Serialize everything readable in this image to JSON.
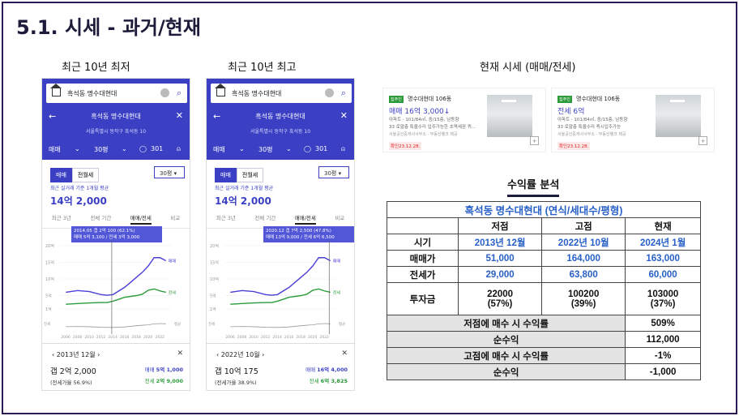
{
  "slide_title": "5.1. 시세 - 과거/현재",
  "captions": {
    "left": "최근 10년 최저",
    "mid": "최근 10년 최고",
    "right": "현재 시세 (매매/전세)"
  },
  "app": {
    "search_text": "흑석동 명수대현대",
    "complex_name": "흑석동 명수대현대",
    "address": "서울특별시 동작구 흑석동 10",
    "filter_trade": "매매",
    "filter_size": "30평",
    "comment_count": "301",
    "toggle_trade": "매매",
    "toggle_rent": "전월세",
    "size_select": "30평",
    "recent_label": "최근 실거래 기준 1개월 평균",
    "recent_price": "14억 2,000",
    "tabs": [
      "최근 3년",
      "전체 기간",
      "매매/전세",
      "비교"
    ],
    "legend_trade": "매매",
    "legend_rent": "전세",
    "legend_gap": "평균",
    "x_ticks": [
      "2006",
      "2008",
      "2010",
      "2012",
      "2014",
      "2016",
      "2018",
      "2020",
      "2022"
    ],
    "y_ticks": [
      "20억",
      "15억",
      "10억",
      "5억",
      "1억"
    ]
  },
  "phone_left": {
    "tooltip1": "2014.05  갭 2억 100 (62.1%)",
    "tooltip2": "매매 5억 3,100 / 전세 3억 3,000",
    "sel_date": "2013년 12월",
    "gap": "갭 2억 2,000",
    "jeonse_ratio": "(전세가율 56.9%)",
    "trade_value": "5억 1,000",
    "rent_value": "2억 9,000"
  },
  "phone_mid": {
    "tooltip1": "2020.12  갭 7억 2,500 (47.8%)",
    "tooltip2": "매매 13억 9,000 / 전세 6억 6,500",
    "sel_date": "2022년 10월",
    "gap": "갭 10억 175",
    "jeonse_ratio": "(전세가율 38.9%)",
    "trade_value": "16억 4,000",
    "rent_value": "6억 3,825"
  },
  "listings": [
    {
      "tag": "집주인",
      "name": "명수대현대 106동",
      "price": "매매 16억 3,000",
      "arrow": "↓",
      "d1": "아파트 · 101/84㎡, 중/15층, 남동향",
      "d2": "33 로얄층 특올수리 입주가능한 초역세권 퀴…",
      "d3": "서울공인중개사사무소 · 부동산뱅크 제공",
      "check": "확인23.12.28."
    },
    {
      "tag": "집주인",
      "name": "명수대현대 106동",
      "price": "전세 6억",
      "arrow": "",
      "d1": "아파트 · 101/84㎡, 중/15층, 남동향",
      "d2": "33 로얄층 특올수리 즉시입주가능",
      "d3": "서울공인중개사사무소 · 부동산뱅크 제공",
      "check": "확인23.12.28."
    }
  ],
  "roi": {
    "title": "수익률 분석",
    "table_title": "흑석동 명수대현대 (연식/세대수/평형)",
    "col_headers": [
      "저점",
      "고점",
      "현재"
    ],
    "rows": [
      {
        "label": "시기",
        "values": [
          "2013년 12월",
          "2022년 10월",
          "2024년 1월"
        ]
      },
      {
        "label": "매매가",
        "values": [
          "51,000",
          "164,000",
          "163,000"
        ]
      },
      {
        "label": "전세가",
        "values": [
          "29,000",
          "63,800",
          "60,000"
        ]
      },
      {
        "label": "투자금",
        "values": [
          "22000",
          "100200",
          "103000"
        ],
        "sub": [
          "(57%)",
          "(39%)",
          "(37%)"
        ]
      }
    ],
    "summary": [
      {
        "label": "저점에 매수 시 수익률",
        "value": "509%"
      },
      {
        "label": "순수익",
        "value": "112,000"
      },
      {
        "label": "고점에 매수 시 수익률",
        "value": "-1%"
      },
      {
        "label": "순수익",
        "value": "-1,000"
      }
    ]
  },
  "colors": {
    "brand": "#3a3fc4",
    "trade_line": "#4b3fd6",
    "rent_line": "#2b9b3a",
    "gap_line": "#999999",
    "table_blue": "#2860c8"
  },
  "chart_data": [
    {
      "type": "line",
      "title": "",
      "x": [
        2006,
        2008,
        2010,
        2012,
        2013,
        2014,
        2016,
        2018,
        2019,
        2020,
        2021,
        2022,
        2023
      ],
      "series": [
        {
          "name": "매매",
          "values": [
            6.0,
            6.5,
            6.2,
            5.3,
            5.1,
            5.3,
            7.5,
            10.5,
            12.0,
            13.9,
            16.4,
            16.4,
            15.5
          ]
        },
        {
          "name": "전세",
          "values": [
            2.4,
            2.6,
            2.8,
            2.9,
            2.9,
            3.3,
            4.5,
            5.0,
            5.4,
            6.6,
            7.0,
            6.4,
            6.0
          ]
        }
      ],
      "ylim": [
        0,
        20
      ]
    }
  ]
}
